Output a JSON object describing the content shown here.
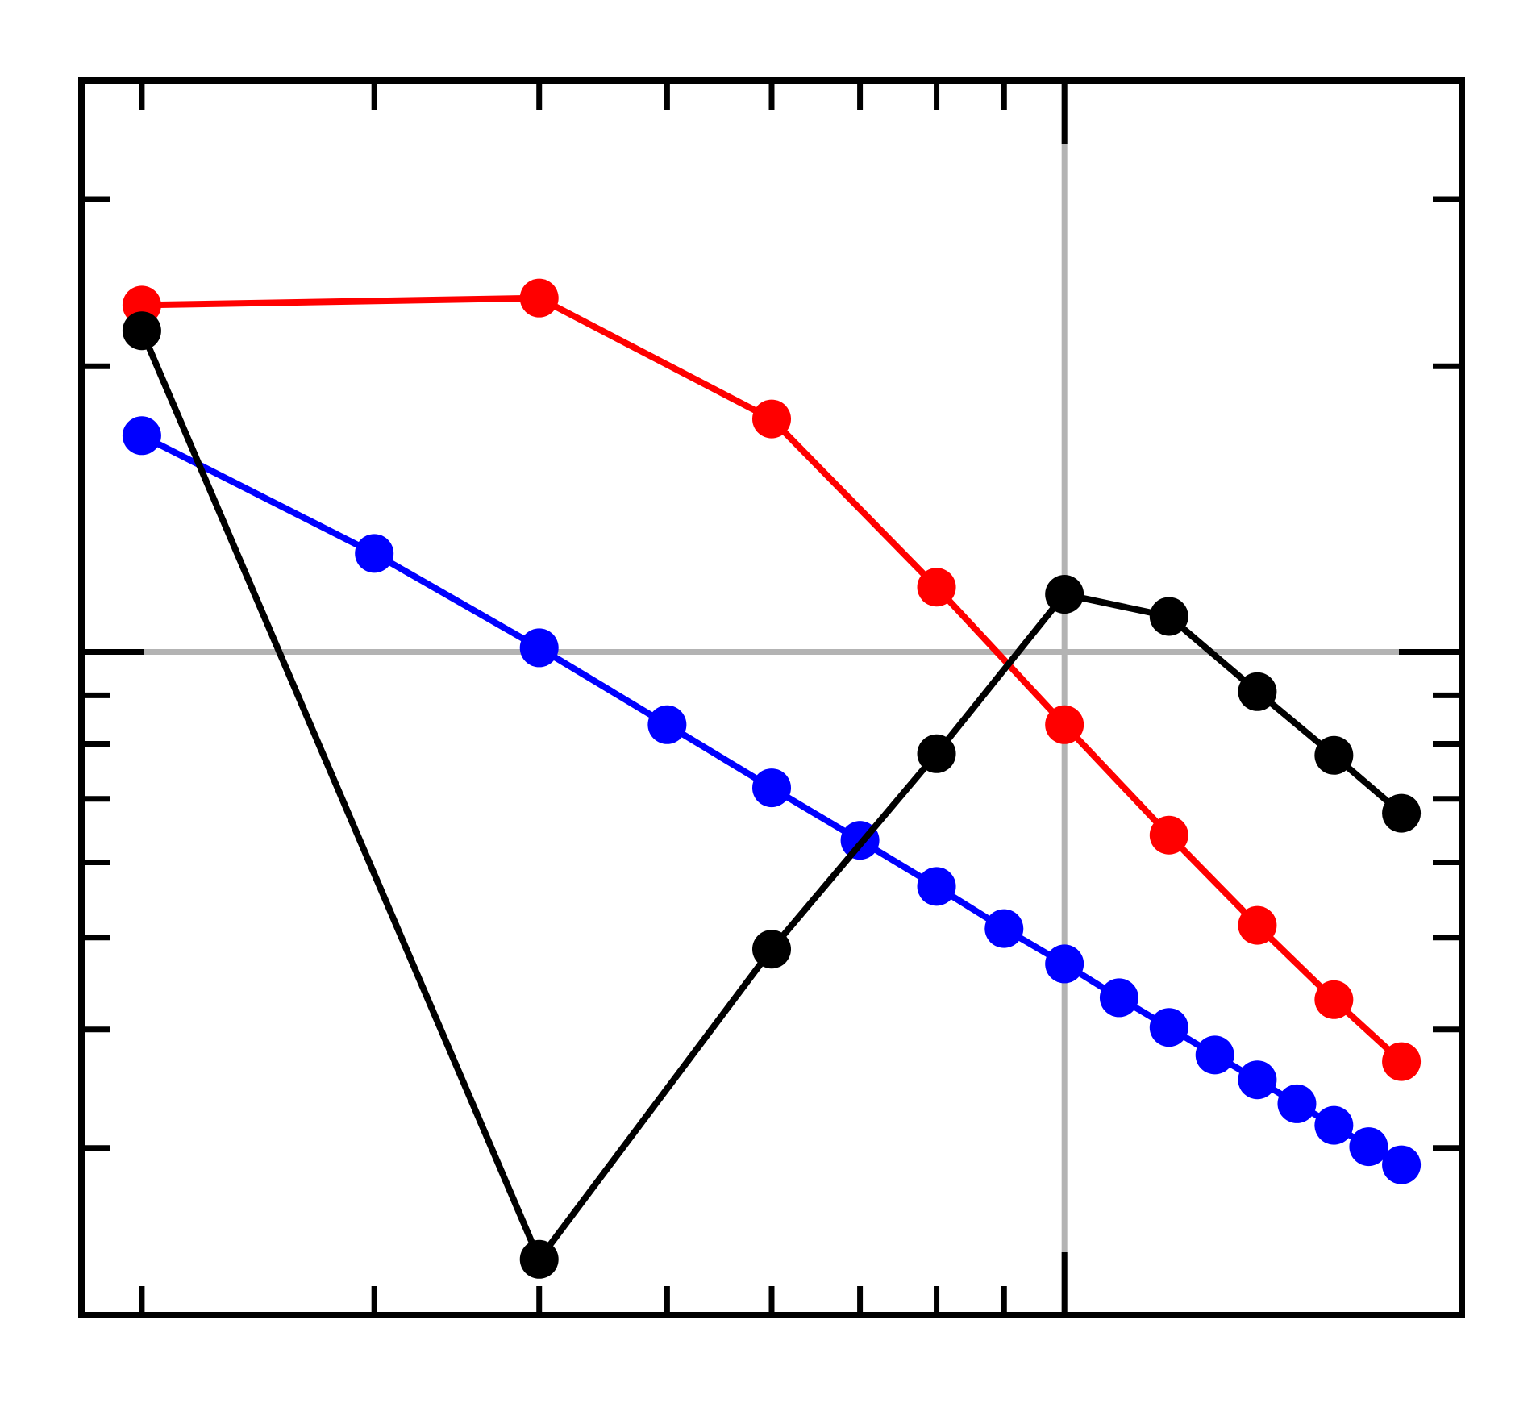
{
  "chart_data": {
    "type": "line",
    "xscale": "log",
    "yscale": "log",
    "xlim": [
      1.8,
      20
    ],
    "ylim": [
      0.2,
      4
    ],
    "xticks": [
      2,
      3,
      4,
      5,
      6,
      7,
      8,
      9,
      10,
      20
    ],
    "yticks": [
      0.3,
      0.4,
      0.5,
      0.6,
      0.7,
      0.8,
      0.9,
      1,
      2,
      3
    ],
    "grid": true,
    "series": [
      {
        "color": "#0000ff",
        "x": [
          2,
          3,
          4,
          5,
          6,
          7,
          8,
          9,
          10,
          11,
          12,
          13,
          14,
          15,
          16,
          17,
          18
        ],
        "values": [
          1.69,
          1.27,
          1.01,
          0.838,
          0.719,
          0.633,
          0.566,
          0.511,
          0.469,
          0.432,
          0.402,
          0.376,
          0.354,
          0.334,
          0.317,
          0.301,
          0.288
        ]
      },
      {
        "color": "#ff0000",
        "x": [
          2,
          4,
          6,
          8,
          10,
          12,
          14,
          16,
          18
        ],
        "values": [
          2.32,
          2.36,
          1.76,
          1.17,
          0.838,
          0.641,
          0.515,
          0.43,
          0.37
        ]
      },
      {
        "color": "#000000",
        "x": [
          2,
          4,
          6,
          8,
          10,
          12,
          14,
          16,
          18
        ],
        "values": [
          2.18,
          0.229,
          0.486,
          0.781,
          1.15,
          1.09,
          0.908,
          0.778,
          0.676
        ]
      }
    ]
  }
}
